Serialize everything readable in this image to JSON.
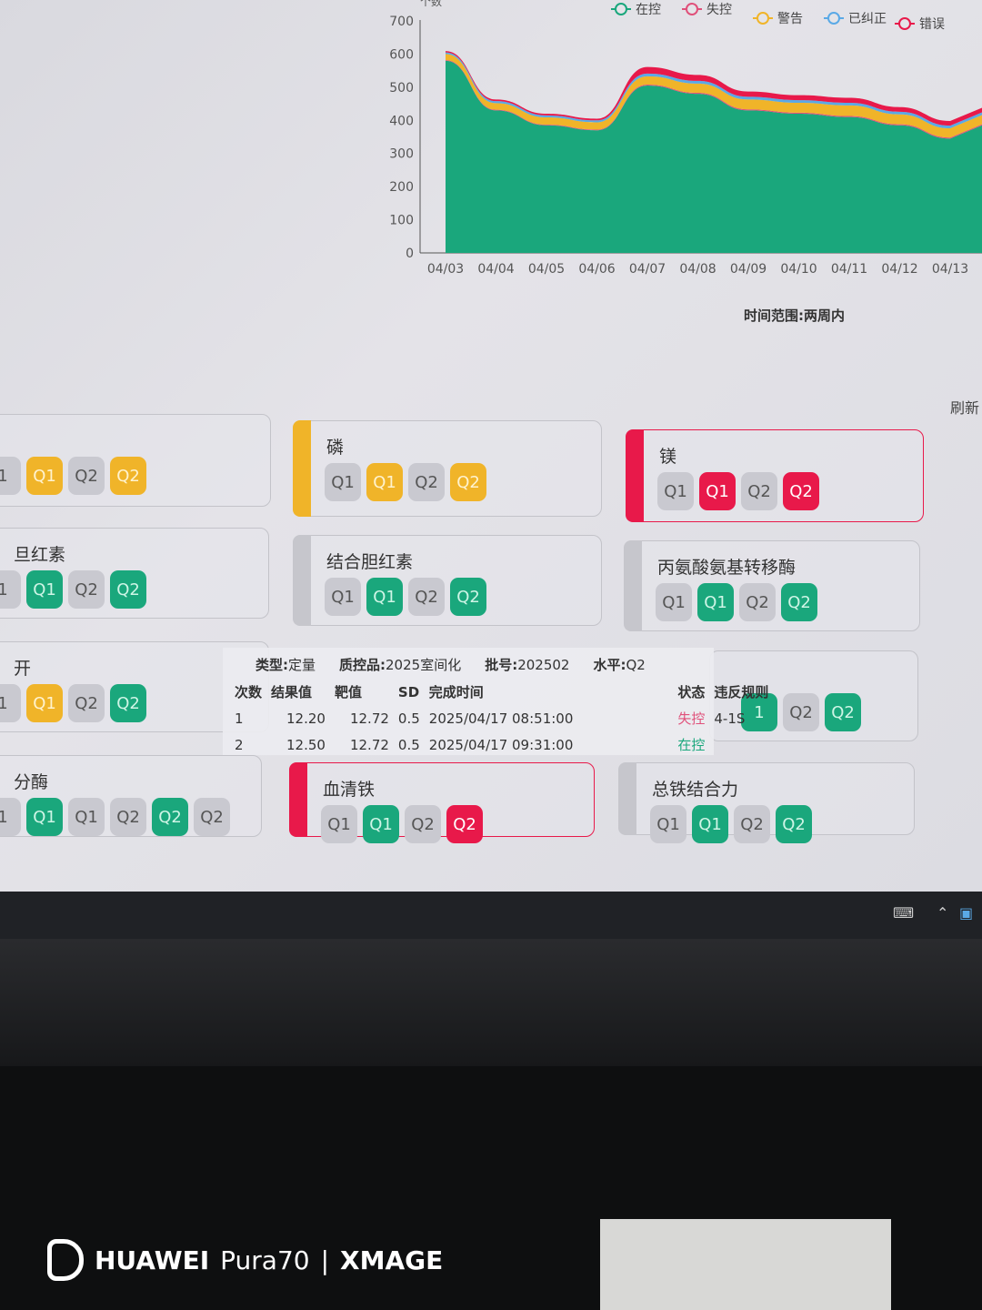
{
  "chart_data": {
    "type": "area",
    "stacked": true,
    "ylabel": "个数",
    "ylim": [
      0,
      700
    ],
    "yticks": [
      0,
      100,
      200,
      300,
      400,
      500,
      600,
      700
    ],
    "categories": [
      "04/03",
      "04/04",
      "04/05",
      "04/06",
      "04/07",
      "04/08",
      "04/09",
      "04/10",
      "04/11",
      "04/12",
      "04/13"
    ],
    "legend_position": "top-right",
    "series": [
      {
        "name": "在控",
        "color": "#1aa77c",
        "values": [
          580,
          430,
          385,
          370,
          505,
          480,
          430,
          420,
          410,
          385,
          345
        ]
      },
      {
        "name": "失控",
        "color": "#e0507a",
        "values": [
          2,
          2,
          2,
          2,
          3,
          3,
          3,
          3,
          3,
          3,
          3
        ]
      },
      {
        "name": "警告",
        "color": "#f0b429",
        "values": [
          18,
          20,
          22,
          22,
          25,
          28,
          30,
          30,
          32,
          30,
          28
        ]
      },
      {
        "name": "已纠正",
        "color": "#5aa9e6",
        "values": [
          5,
          6,
          6,
          6,
          8,
          8,
          8,
          8,
          8,
          8,
          8
        ]
      },
      {
        "name": "错误",
        "color": "#e8194a",
        "values": [
          4,
          5,
          5,
          5,
          20,
          18,
          16,
          15,
          15,
          14,
          14
        ]
      }
    ],
    "subtitle": "时间范围:两周内"
  },
  "refresh_label": "刷新",
  "cards": [
    {
      "title": "",
      "accent": "none",
      "chips": [
        {
          "label": "1",
          "color": "gray"
        },
        {
          "label": "Q1",
          "color": "yellow"
        },
        {
          "label": "Q2",
          "color": "gray"
        },
        {
          "label": "Q2",
          "color": "yellow"
        }
      ]
    },
    {
      "title": "磷",
      "accent": "yellow",
      "chips": [
        {
          "label": "Q1",
          "color": "gray"
        },
        {
          "label": "Q1",
          "color": "yellow"
        },
        {
          "label": "Q2",
          "color": "gray"
        },
        {
          "label": "Q2",
          "color": "yellow"
        }
      ]
    },
    {
      "title": "镁",
      "accent": "red",
      "chips": [
        {
          "label": "Q1",
          "color": "gray"
        },
        {
          "label": "Q1",
          "color": "red"
        },
        {
          "label": "Q2",
          "color": "gray"
        },
        {
          "label": "Q2",
          "color": "red"
        }
      ]
    },
    {
      "title": "旦红素",
      "accent": "none",
      "chips": [
        {
          "label": "1",
          "color": "gray"
        },
        {
          "label": "Q1",
          "color": "green"
        },
        {
          "label": "Q2",
          "color": "gray"
        },
        {
          "label": "Q2",
          "color": "green"
        }
      ]
    },
    {
      "title": "结合胆红素",
      "accent": "gray",
      "chips": [
        {
          "label": "Q1",
          "color": "gray"
        },
        {
          "label": "Q1",
          "color": "green"
        },
        {
          "label": "Q2",
          "color": "gray"
        },
        {
          "label": "Q2",
          "color": "green"
        }
      ]
    },
    {
      "title": "丙氨酸氨基转移酶",
      "accent": "gray",
      "chips": [
        {
          "label": "Q1",
          "color": "gray"
        },
        {
          "label": "Q1",
          "color": "green"
        },
        {
          "label": "Q2",
          "color": "gray"
        },
        {
          "label": "Q2",
          "color": "green"
        }
      ]
    },
    {
      "title": "开",
      "accent": "none",
      "chips": [
        {
          "label": "1",
          "color": "gray"
        },
        {
          "label": "Q1",
          "color": "yellow"
        },
        {
          "label": "Q2",
          "color": "gray"
        },
        {
          "label": "Q2",
          "color": "green"
        }
      ]
    },
    {
      "title": "",
      "accent": "none",
      "chips": [
        {
          "label": "1",
          "color": "green"
        },
        {
          "label": "Q2",
          "color": "gray"
        },
        {
          "label": "Q2",
          "color": "green"
        }
      ]
    },
    {
      "title": "分酶",
      "accent": "none",
      "chips": [
        {
          "label": "1",
          "color": "gray"
        },
        {
          "label": "Q1",
          "color": "green"
        },
        {
          "label": "Q1",
          "color": "gray"
        },
        {
          "label": "Q2",
          "color": "gray"
        },
        {
          "label": "Q2",
          "color": "green"
        },
        {
          "label": "Q2",
          "color": "gray"
        }
      ]
    },
    {
      "title": "血清铁",
      "accent": "red",
      "chips": [
        {
          "label": "Q1",
          "color": "gray"
        },
        {
          "label": "Q1",
          "color": "green"
        },
        {
          "label": "Q2",
          "color": "gray"
        },
        {
          "label": "Q2",
          "color": "red"
        }
      ]
    },
    {
      "title": "总铁结合力",
      "accent": "gray",
      "chips": [
        {
          "label": "Q1",
          "color": "gray"
        },
        {
          "label": "Q1",
          "color": "green"
        },
        {
          "label": "Q2",
          "color": "gray"
        },
        {
          "label": "Q2",
          "color": "green"
        }
      ]
    }
  ],
  "tooltip": {
    "type_label": "类型:",
    "type": "定量",
    "qc_label": "质控品:",
    "qc": "2025室间化",
    "lot_label": "批号:",
    "lot": "202502",
    "level_label": "水平:",
    "level": "Q2",
    "columns": [
      "次数",
      "结果值",
      "靶值",
      "SD",
      "完成时间",
      "状态",
      "违反规则"
    ],
    "rows": [
      {
        "n": "1",
        "result": "12.20",
        "target": "12.72",
        "sd": "0.5",
        "time": "2025/04/17 08:51:00",
        "status": "失控",
        "status_color": "#e0507a",
        "rule": "4-1S"
      },
      {
        "n": "2",
        "result": "12.50",
        "target": "12.72",
        "sd": "0.5",
        "time": "2025/04/17 09:31:00",
        "status": "在控",
        "status_color": "#1aa77c",
        "rule": ""
      }
    ]
  },
  "watermark": {
    "brand": "HUAWEI",
    "model": "Pura70",
    "sep": "|",
    "camera": "XMAGE"
  },
  "colors": {
    "yellow": "#f0b429",
    "green": "#1aa77c",
    "red": "#e8194a",
    "gray": "#c9c9d0"
  }
}
